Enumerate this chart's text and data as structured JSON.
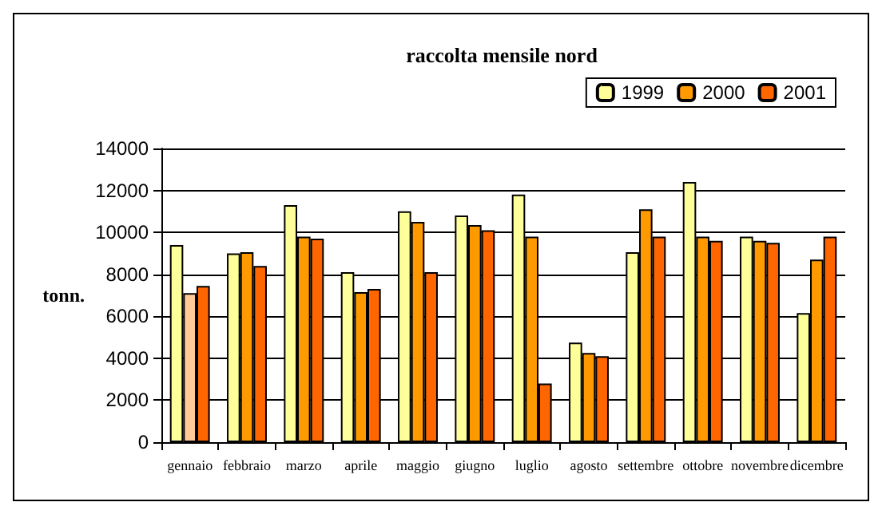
{
  "chart_data": {
    "type": "bar",
    "title": "raccolta mensile nord",
    "ylabel": "tonn.",
    "categories": [
      "gennaio",
      "febbraio",
      "marzo",
      "aprile",
      "maggio",
      "giugno",
      "luglio",
      "agosto",
      "settembre",
      "ottobre",
      "novembre",
      "dicembre"
    ],
    "series": [
      {
        "name": "1999",
        "color": "#ffff99",
        "values": [
          9400,
          9000,
          11300,
          8100,
          11000,
          10800,
          11800,
          4750,
          9050,
          12400,
          9800,
          6150
        ]
      },
      {
        "name": "2000",
        "color": "#ff9900",
        "colors": [
          "#ffcc99",
          "#ff9900",
          "#ff9900",
          "#ff9900",
          "#ff9900",
          "#ff9900",
          "#ff9900",
          "#ff9900",
          "#ff9900",
          "#ff9900",
          "#ff9900",
          "#ff9900"
        ],
        "values": [
          7100,
          9050,
          9800,
          7150,
          10500,
          10350,
          9800,
          4250,
          11100,
          9800,
          9600,
          8700
        ]
      },
      {
        "name": "2001",
        "color": "#ff6600",
        "values": [
          7450,
          8400,
          9700,
          7300,
          8100,
          10100,
          2800,
          4100,
          9800,
          9600,
          9500,
          9800
        ]
      }
    ],
    "ylim": [
      0,
      14000
    ],
    "yticks": [
      0,
      2000,
      4000,
      6000,
      8000,
      10000,
      12000,
      14000
    ],
    "grid": "y",
    "legend": "top right"
  }
}
